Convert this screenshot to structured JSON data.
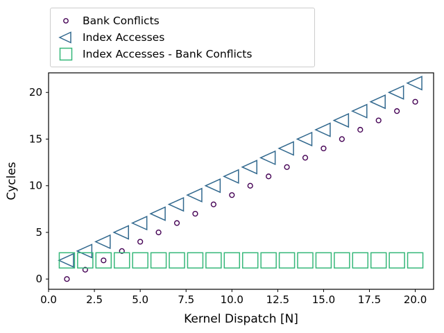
{
  "chart_data": {
    "type": "scatter",
    "title": "",
    "xlabel": "Kernel Dispatch [N]",
    "ylabel": "Cycles",
    "xlim": [
      0,
      21
    ],
    "ylim": [
      -1.1,
      22.1
    ],
    "grid": false,
    "legend_position": "upper-left-above-axes",
    "x_tick_values": [
      0,
      2.5,
      5,
      7.5,
      10,
      12.5,
      15,
      17.5,
      20
    ],
    "x_tick_labels": [
      "0.0",
      "2.5",
      "5.0",
      "7.5",
      "10.0",
      "12.5",
      "15.0",
      "17.5",
      "20.0"
    ],
    "y_tick_values": [
      0,
      5,
      10,
      15,
      20
    ],
    "y_tick_labels": [
      "0",
      "5",
      "10",
      "15",
      "20"
    ],
    "x": [
      1,
      2,
      3,
      4,
      5,
      6,
      7,
      8,
      9,
      10,
      11,
      12,
      13,
      14,
      15,
      16,
      17,
      18,
      19,
      20
    ],
    "series": [
      {
        "name": "Bank Conflicts",
        "marker": "circle",
        "icon": "open-circle-icon",
        "color": "#440154",
        "values": [
          0,
          1,
          2,
          3,
          4,
          5,
          6,
          7,
          8,
          9,
          10,
          11,
          12,
          13,
          14,
          15,
          16,
          17,
          18,
          19
        ]
      },
      {
        "name": "Index Accesses",
        "marker": "triangle-left",
        "icon": "open-triangle-left-icon",
        "color": "#31688e",
        "values": [
          2,
          3,
          4,
          5,
          6,
          7,
          8,
          9,
          10,
          11,
          12,
          13,
          14,
          15,
          16,
          17,
          18,
          19,
          20,
          21
        ]
      },
      {
        "name": "Index Accesses - Bank Conflicts",
        "marker": "square",
        "icon": "open-square-icon",
        "color": "#35b779",
        "values": [
          2,
          2,
          2,
          2,
          2,
          2,
          2,
          2,
          2,
          2,
          2,
          2,
          2,
          2,
          2,
          2,
          2,
          2,
          2,
          2
        ]
      }
    ],
    "colors": {
      "background": "#ffffff",
      "spine": "#000000",
      "legend_border": "#cccccc",
      "text": "#000000"
    }
  }
}
